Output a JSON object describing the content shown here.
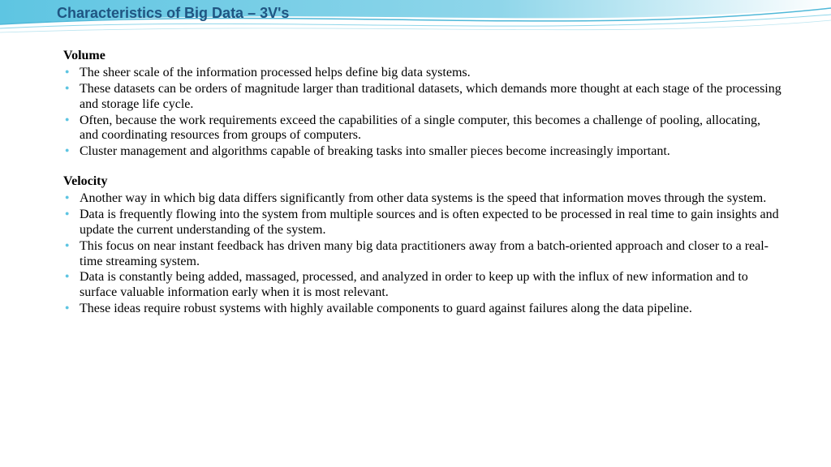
{
  "title": {
    "text": "Characteristics of Big Data – 3V's",
    "color": "#1f5582",
    "fontsize": 18
  },
  "wave": {
    "fill_main": "#5ec5e2",
    "fill_light": "#a8dcec",
    "line_color": "#4fb8d8"
  },
  "body": {
    "fontsize": 16,
    "line_height": 1.18,
    "bullet_color": "#5ec5e2",
    "text_color": "#000000"
  },
  "sections": [
    {
      "heading": "Volume",
      "bullets": [
        "The sheer scale of the information processed helps define big data systems.",
        "These datasets can be orders of magnitude larger than traditional datasets, which demands more thought at each stage of the processing and storage life cycle.",
        "Often, because the work requirements exceed the capabilities of a single computer, this becomes a challenge of pooling, allocating, and coordinating resources from groups of computers.",
        "Cluster management and algorithms capable of breaking tasks into smaller pieces become increasingly important."
      ]
    },
    {
      "heading": "Velocity",
      "bullets": [
        "Another way in which big data differs significantly from other data systems is the speed that information moves through the system.",
        "Data is frequently flowing into the system from multiple sources and is often expected to be processed in real time to gain insights and update the current understanding of the system.",
        "This focus on near instant feedback has driven many big data practitioners away from a batch-oriented approach and closer to a real-time streaming system.",
        "Data is constantly being added, massaged, processed, and analyzed in order to keep up with the influx of new information and to surface valuable information early when it is most relevant.",
        "These ideas require robust systems with highly available components to guard against failures along the data pipeline."
      ]
    }
  ]
}
